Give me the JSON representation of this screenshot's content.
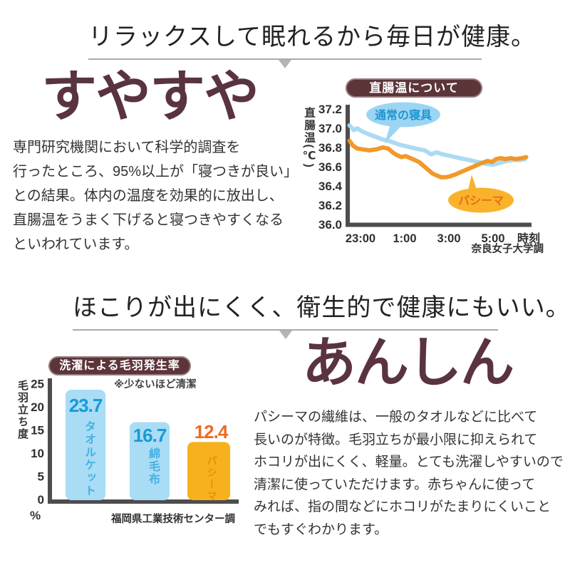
{
  "colors": {
    "accent_maroon": "#5a3340",
    "pill_bg": "#5c3539",
    "header_text": "#222222",
    "body_text": "#333333",
    "rule_gray": "#ababab",
    "axis_gray": "#4d4d4d"
  },
  "section1": {
    "header": "リラックスして眠れるから毎日が健康。",
    "title": "すやすや",
    "body": "専門研究機関において科学的調査を\n行ったところ、95%以上が「寝つきが良い」\nとの結果。体内の温度を効果的に放出し、\n直腸温をうまく下げると寝つきやすくなる\nといわれています。"
  },
  "section2": {
    "header": "ほこりが出にくく、衛生的で健康にもいい。",
    "title": "あんしん",
    "body": "パシーマの繊維は、一般のタオルなどに比べて\n長いのが特徴。毛羽立ちが最小限に抑えられて\nホコリが出にくく、軽量。とても洗濯しやすいので\n清潔に使っていただけます。赤ちゃんに使って\nみれば、指の間などにホコリがたまりにくいこと\nでもすぐわかります。"
  },
  "chart_data": [
    {
      "type": "line",
      "title": "直腸温について",
      "ylabel": "直腸温(℃)",
      "xlabel": "時刻",
      "source": "奈良女子大学調",
      "ylim": [
        36.0,
        37.2
      ],
      "yticks": [
        "37.2",
        "37.0",
        "36.8",
        "36.6",
        "36.4",
        "36.2",
        "36.0"
      ],
      "xticks": [
        {
          "label": "23:00",
          "h": 0
        },
        {
          "label": "1:00",
          "h": 2
        },
        {
          "label": "3:00",
          "h": 4
        },
        {
          "label": "5:00",
          "h": 6
        }
      ],
      "x_unit": "hours after 23:00",
      "grid": false,
      "series": [
        {
          "name": "通常の寝具",
          "color": "#a8d8f1",
          "label_color": "#1e96d2",
          "bubble_fill": "#9bd5f3",
          "points": [
            [
              -0.5,
              37.03
            ],
            [
              -0.3,
              36.98
            ],
            [
              -0.15,
              37.0
            ],
            [
              0.05,
              36.97
            ],
            [
              0.35,
              36.94
            ],
            [
              0.7,
              36.91
            ],
            [
              1.05,
              36.88
            ],
            [
              1.4,
              36.86
            ],
            [
              1.75,
              36.83
            ],
            [
              2.1,
              36.81
            ],
            [
              2.5,
              36.79
            ],
            [
              2.9,
              36.77
            ],
            [
              3.2,
              36.73
            ],
            [
              3.45,
              36.75
            ],
            [
              3.7,
              36.73
            ],
            [
              4.1,
              36.71
            ],
            [
              4.5,
              36.69
            ],
            [
              4.9,
              36.67
            ],
            [
              5.3,
              36.65
            ],
            [
              5.7,
              36.63
            ],
            [
              6.0,
              36.62
            ],
            [
              6.3,
              36.64
            ],
            [
              6.6,
              36.66
            ],
            [
              6.9,
              36.67
            ],
            [
              7.2,
              36.67
            ],
            [
              7.45,
              36.68
            ]
          ]
        },
        {
          "name": "パシーマ",
          "color": "#f0941e",
          "label_color": "#e96d17",
          "bubble_fill": "#f8b32b",
          "points": [
            [
              -0.5,
              36.87
            ],
            [
              -0.35,
              36.82
            ],
            [
              -0.15,
              36.79
            ],
            [
              0.1,
              36.78
            ],
            [
              0.4,
              36.77
            ],
            [
              0.7,
              36.78
            ],
            [
              1.0,
              36.8
            ],
            [
              1.25,
              36.79
            ],
            [
              1.45,
              36.75
            ],
            [
              1.65,
              36.72
            ],
            [
              1.85,
              36.7
            ],
            [
              2.05,
              36.71
            ],
            [
              2.25,
              36.69
            ],
            [
              2.45,
              36.67
            ],
            [
              2.65,
              36.65
            ],
            [
              2.85,
              36.61
            ],
            [
              3.05,
              36.57
            ],
            [
              3.25,
              36.53
            ],
            [
              3.45,
              36.51
            ],
            [
              3.65,
              36.49
            ],
            [
              3.85,
              36.49
            ],
            [
              4.05,
              36.5
            ],
            [
              4.3,
              36.52
            ],
            [
              4.6,
              36.55
            ],
            [
              4.9,
              36.58
            ],
            [
              5.2,
              36.61
            ],
            [
              5.5,
              36.64
            ],
            [
              5.75,
              36.66
            ],
            [
              5.95,
              36.65
            ],
            [
              6.15,
              36.68
            ],
            [
              6.35,
              36.69
            ],
            [
              6.55,
              36.68
            ],
            [
              6.8,
              36.69
            ],
            [
              7.05,
              36.68
            ],
            [
              7.3,
              36.69
            ],
            [
              7.5,
              36.7
            ]
          ]
        }
      ]
    },
    {
      "type": "bar",
      "title": "洗濯による毛羽発生率",
      "note": "※少ないほど清潔",
      "ylabel": "毛羽立ち度",
      "unit": "%",
      "source": "福岡県工業技術センター調",
      "ylim": [
        0,
        25
      ],
      "yticks": [
        25,
        20,
        15,
        10,
        5,
        0
      ],
      "categories": [
        "タオルケット",
        "綿毛布",
        "パシーマ"
      ],
      "values": [
        23.7,
        16.7,
        12.4
      ],
      "bar_colors": [
        "#a9dcf5",
        "#a9dcf5",
        "#f6b11c"
      ],
      "value_colors": [
        "#179bd8",
        "#179bd8",
        "#ee6a22"
      ],
      "label_colors": [
        "#45b0e2",
        "#45b0e2",
        "#e9910a"
      ]
    }
  ]
}
